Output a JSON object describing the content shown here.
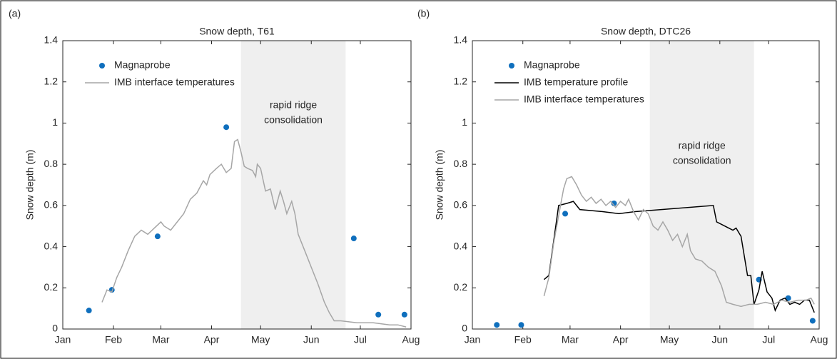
{
  "chart_data": [
    {
      "type": "line",
      "label": "(a)",
      "title": "Snow depth, T61",
      "ylabel": "Snow depth (m)",
      "xlim": [
        0,
        213
      ],
      "xticks": [
        {
          "value": 0,
          "label": "Jan"
        },
        {
          "value": 31,
          "label": "Feb"
        },
        {
          "value": 60,
          "label": "Mar"
        },
        {
          "value": 91,
          "label": "Apr"
        },
        {
          "value": 121,
          "label": "May"
        },
        {
          "value": 152,
          "label": "Jun"
        },
        {
          "value": 182,
          "label": "Jul"
        },
        {
          "value": 213,
          "label": "Aug"
        }
      ],
      "ylim": [
        0,
        1.4
      ],
      "yticks": [
        0,
        0.2,
        0.4,
        0.6,
        0.8,
        1,
        1.2,
        1.4
      ],
      "shade": {
        "x": [
          109,
          173
        ],
        "color": "#efefef",
        "text": [
          "rapid ridge",
          "consolidation"
        ]
      },
      "series": [
        {
          "name": "Magnaprobe",
          "style": "marker",
          "color": "#0f6fbd",
          "x": [
            16,
            30,
            58,
            100,
            178,
            193,
            209
          ],
          "values": [
            0.09,
            0.19,
            0.45,
            0.98,
            0.44,
            0.07,
            0.07
          ]
        },
        {
          "name": "IMB interface temperatures",
          "style": "line",
          "color": "#a6a6a6",
          "x": [
            24,
            27,
            30,
            33,
            36,
            40,
            44,
            48,
            52,
            56,
            60,
            62,
            66,
            70,
            74,
            78,
            82,
            86,
            88,
            90,
            94,
            97,
            100,
            103,
            105,
            107,
            109,
            111,
            113,
            116,
            118,
            119,
            121,
            124,
            127,
            130,
            133,
            135,
            137,
            140,
            142,
            144,
            148,
            152,
            156,
            160,
            163,
            166,
            170,
            180,
            190,
            200,
            205,
            210
          ],
          "values": [
            0.13,
            0.19,
            0.18,
            0.25,
            0.3,
            0.38,
            0.45,
            0.48,
            0.46,
            0.49,
            0.52,
            0.5,
            0.48,
            0.52,
            0.56,
            0.63,
            0.66,
            0.72,
            0.7,
            0.75,
            0.78,
            0.8,
            0.76,
            0.78,
            0.91,
            0.92,
            0.86,
            0.79,
            0.78,
            0.77,
            0.74,
            0.8,
            0.78,
            0.67,
            0.68,
            0.58,
            0.67,
            0.62,
            0.56,
            0.62,
            0.56,
            0.46,
            0.38,
            0.3,
            0.22,
            0.13,
            0.08,
            0.04,
            0.04,
            0.03,
            0.03,
            0.02,
            0.02,
            0.01
          ]
        }
      ]
    },
    {
      "type": "line",
      "label": "(b)",
      "title": "Snow depth, DTC26",
      "ylabel": "Snow depth (m)",
      "xlim": [
        0,
        213
      ],
      "xticks": [
        {
          "value": 0,
          "label": "Jan"
        },
        {
          "value": 31,
          "label": "Feb"
        },
        {
          "value": 60,
          "label": "Mar"
        },
        {
          "value": 91,
          "label": "Apr"
        },
        {
          "value": 121,
          "label": "May"
        },
        {
          "value": 152,
          "label": "Jun"
        },
        {
          "value": 182,
          "label": "Jul"
        },
        {
          "value": 213,
          "label": "Aug"
        }
      ],
      "ylim": [
        0,
        1.4
      ],
      "yticks": [
        0,
        0.2,
        0.4,
        0.6,
        0.8,
        1,
        1.2,
        1.4
      ],
      "shade": {
        "x": [
          109,
          173
        ],
        "color": "#efefef",
        "text": [
          "rapid ridge",
          "consolidation"
        ]
      },
      "series": [
        {
          "name": "Magnaprobe",
          "style": "marker",
          "color": "#0f6fbd",
          "x": [
            15,
            30,
            57,
            87,
            176,
            194,
            209
          ],
          "values": [
            0.02,
            0.02,
            0.56,
            0.61,
            0.24,
            0.15,
            0.04
          ]
        },
        {
          "name": "IMB temperature profile",
          "style": "line",
          "color": "#000000",
          "x": [
            44,
            47,
            53,
            58,
            62,
            66,
            80,
            90,
            100,
            148,
            150,
            155,
            160,
            162,
            165,
            169,
            171,
            173,
            176,
            178,
            181,
            184,
            186,
            189,
            192,
            195,
            198,
            201,
            204,
            207,
            210
          ],
          "values": [
            0.24,
            0.26,
            0.6,
            0.61,
            0.62,
            0.58,
            0.57,
            0.56,
            0.57,
            0.6,
            0.52,
            0.5,
            0.48,
            0.49,
            0.45,
            0.26,
            0.26,
            0.12,
            0.19,
            0.28,
            0.18,
            0.15,
            0.09,
            0.14,
            0.15,
            0.12,
            0.13,
            0.12,
            0.14,
            0.14,
            0.08
          ]
        },
        {
          "name": "IMB interface temperatures",
          "style": "line",
          "color": "#a6a6a6",
          "x": [
            44,
            47,
            50,
            53,
            56,
            58,
            61,
            64,
            67,
            70,
            73,
            76,
            79,
            82,
            85,
            88,
            91,
            94,
            96,
            99,
            102,
            105,
            108,
            111,
            114,
            117,
            120,
            123,
            126,
            129,
            132,
            134,
            137,
            141,
            145,
            149,
            153,
            156,
            160,
            165,
            170,
            175,
            180,
            185,
            190,
            195,
            200,
            205,
            208,
            210
          ],
          "values": [
            0.16,
            0.25,
            0.42,
            0.55,
            0.68,
            0.73,
            0.74,
            0.7,
            0.65,
            0.62,
            0.64,
            0.61,
            0.63,
            0.6,
            0.62,
            0.59,
            0.62,
            0.6,
            0.63,
            0.57,
            0.53,
            0.58,
            0.56,
            0.5,
            0.48,
            0.52,
            0.48,
            0.43,
            0.46,
            0.4,
            0.46,
            0.38,
            0.34,
            0.33,
            0.3,
            0.28,
            0.21,
            0.13,
            0.12,
            0.11,
            0.12,
            0.12,
            0.13,
            0.12,
            0.14,
            0.13,
            0.14,
            0.14,
            0.15,
            0.12
          ]
        }
      ]
    }
  ]
}
